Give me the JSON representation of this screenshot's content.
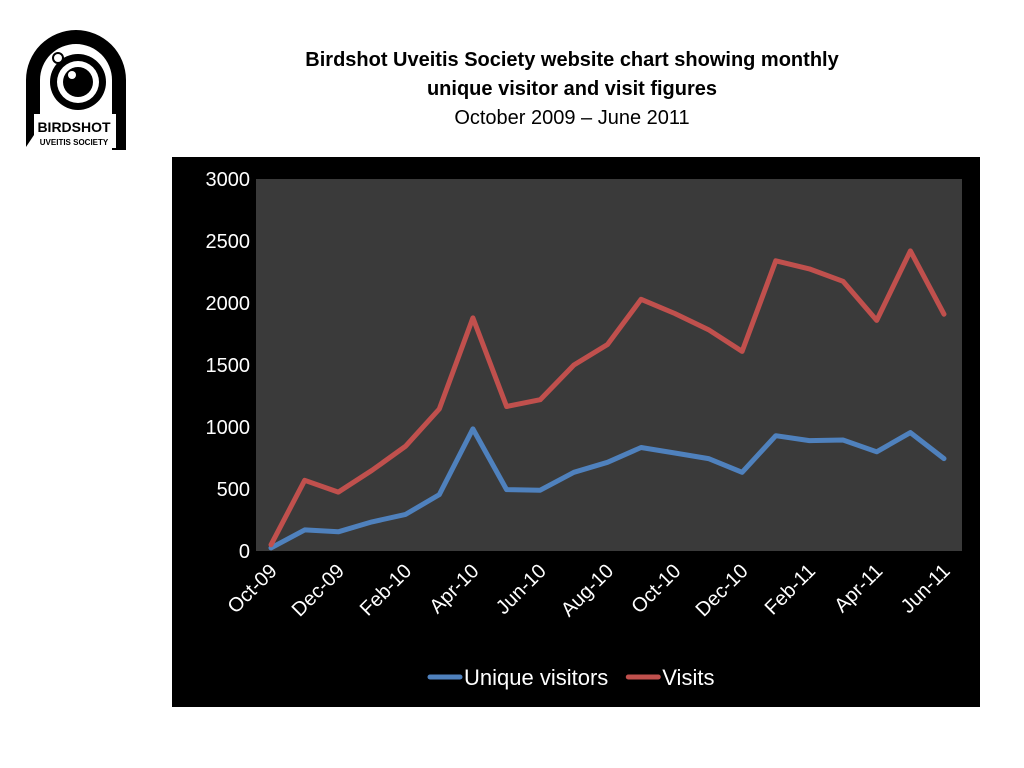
{
  "logo": {
    "line1": "BIRDSHOT",
    "line2": "UVEITIS SOCIETY"
  },
  "header": {
    "title_line1": "Birdshot Uveitis Society website chart showing  monthly",
    "title_line2": "unique visitor and visit figures",
    "subtitle": "October 2009 – June 2011"
  },
  "chart_data": {
    "type": "line",
    "x": [
      "Oct-09",
      "Nov-09",
      "Dec-09",
      "Jan-10",
      "Feb-10",
      "Mar-10",
      "Apr-10",
      "May-10",
      "Jun-10",
      "Jul-10",
      "Aug-10",
      "Sep-10",
      "Oct-10",
      "Nov-10",
      "Dec-10",
      "Jan-11",
      "Feb-11",
      "Mar-11",
      "Apr-11",
      "May-11",
      "Jun-11"
    ],
    "x_tick_labels": [
      "Oct-09",
      "Dec-09",
      "Feb-10",
      "Apr-10",
      "Jun-10",
      "Aug-10",
      "Oct-10",
      "Dec-10",
      "Feb-11",
      "Apr-11",
      "Jun-11"
    ],
    "series": [
      {
        "name": "Unique visitors",
        "color": "#4f81bd",
        "values": [
          25,
          170,
          155,
          235,
          295,
          455,
          985,
          495,
          490,
          635,
          715,
          835,
          790,
          745,
          635,
          930,
          890,
          895,
          800,
          955,
          745
        ]
      },
      {
        "name": "Visits",
        "color": "#c0504d",
        "values": [
          50,
          570,
          475,
          650,
          845,
          1145,
          1880,
          1165,
          1220,
          1500,
          1665,
          2030,
          1915,
          1785,
          1610,
          2340,
          2275,
          2175,
          1860,
          2420,
          1910
        ]
      }
    ],
    "ylim": [
      0,
      3000
    ],
    "y_ticks": [
      0,
      500,
      1000,
      1500,
      2000,
      2500,
      3000
    ],
    "grid": false,
    "legend_position": "bottom",
    "plot_background": "#3a3a3a",
    "frame_background": "#000000"
  }
}
